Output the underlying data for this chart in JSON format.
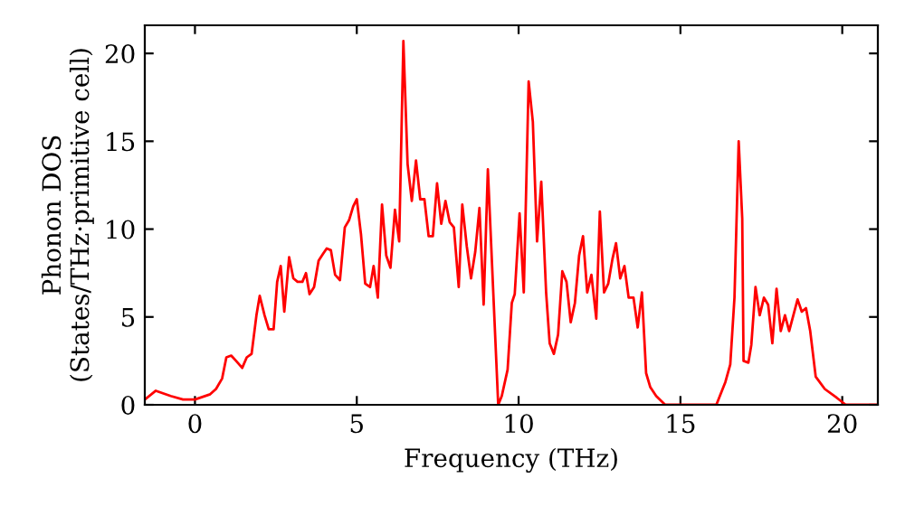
{
  "chart_data": {
    "type": "line",
    "xlabel": "Frequency (THz)",
    "ylabel": "Phonon DOS\n(States/THz·primitive cell)",
    "xlim": [
      -1.55,
      21.1
    ],
    "ylim": [
      0,
      21.6
    ],
    "xticks": [
      0,
      5,
      10,
      15,
      20
    ],
    "yticks": [
      0,
      5,
      10,
      15,
      20
    ],
    "grid": false,
    "legend": false,
    "marker": "none",
    "line_style": "solid",
    "series": [
      {
        "color": "#ff0000",
        "x": [
          -1.55,
          -1.21,
          -0.75,
          -0.37,
          0.0,
          0.47,
          0.65,
          0.84,
          0.97,
          1.12,
          1.27,
          1.46,
          1.6,
          1.75,
          1.9,
          2.0,
          2.15,
          2.28,
          2.43,
          2.54,
          2.65,
          2.76,
          2.91,
          3.04,
          3.17,
          3.32,
          3.43,
          3.54,
          3.68,
          3.82,
          3.96,
          4.07,
          4.2,
          4.33,
          4.48,
          4.63,
          4.76,
          4.89,
          5.0,
          5.13,
          5.26,
          5.41,
          5.52,
          5.65,
          5.78,
          5.91,
          6.04,
          6.18,
          6.31,
          6.44,
          6.57,
          6.7,
          6.83,
          6.96,
          7.09,
          7.22,
          7.35,
          7.48,
          7.61,
          7.74,
          7.87,
          8.0,
          8.15,
          8.26,
          8.4,
          8.53,
          8.66,
          8.79,
          8.92,
          9.05,
          9.37,
          9.48,
          9.66,
          9.79,
          9.88,
          10.03,
          10.16,
          10.31,
          10.44,
          10.57,
          10.7,
          10.85,
          10.96,
          11.09,
          11.22,
          11.35,
          11.48,
          11.61,
          11.74,
          11.87,
          11.99,
          12.12,
          12.25,
          12.4,
          12.51,
          12.64,
          12.77,
          12.9,
          13.01,
          13.14,
          13.27,
          13.4,
          13.55,
          13.68,
          13.81,
          13.94,
          14.07,
          14.25,
          14.53,
          16.11,
          16.39,
          16.54,
          16.67,
          16.8,
          16.91,
          16.95,
          17.1,
          17.19,
          17.32,
          17.45,
          17.58,
          17.71,
          17.84,
          17.97,
          18.1,
          18.23,
          18.36,
          18.49,
          18.62,
          18.75,
          18.88,
          19.01,
          19.18,
          19.46,
          19.83,
          20.11,
          21.1
        ],
        "values": [
          0.3,
          0.8,
          0.5,
          0.3,
          0.3,
          0.6,
          0.9,
          1.5,
          2.7,
          2.8,
          2.5,
          2.1,
          2.7,
          2.9,
          5.1,
          6.2,
          5.1,
          4.3,
          4.3,
          7.0,
          7.9,
          5.3,
          8.4,
          7.2,
          7.0,
          7.0,
          7.5,
          6.3,
          6.7,
          8.2,
          8.6,
          8.9,
          8.8,
          7.4,
          7.1,
          10.1,
          10.5,
          11.3,
          11.7,
          9.7,
          6.9,
          6.7,
          7.9,
          6.1,
          11.4,
          8.5,
          7.8,
          11.1,
          9.3,
          20.7,
          13.7,
          11.6,
          13.9,
          11.7,
          11.7,
          9.6,
          9.6,
          12.6,
          10.3,
          11.6,
          10.4,
          10.1,
          6.7,
          11.4,
          9.0,
          7.2,
          8.7,
          11.2,
          5.7,
          13.4,
          0.0,
          0.5,
          2.0,
          5.8,
          6.3,
          10.9,
          6.4,
          18.4,
          16.1,
          9.3,
          12.7,
          6.4,
          3.5,
          2.9,
          4.0,
          7.6,
          7.0,
          4.7,
          5.8,
          8.5,
          9.6,
          6.4,
          7.4,
          4.9,
          11.0,
          6.4,
          6.9,
          8.3,
          9.2,
          7.2,
          7.9,
          6.1,
          6.1,
          4.4,
          6.4,
          1.8,
          1.0,
          0.5,
          0.0,
          0.0,
          1.3,
          2.3,
          6.1,
          15.0,
          10.6,
          2.5,
          2.4,
          3.4,
          6.7,
          5.1,
          6.1,
          5.7,
          3.5,
          6.6,
          4.2,
          5.1,
          4.2,
          5.1,
          6.0,
          5.3,
          5.5,
          4.2,
          1.6,
          0.9,
          0.4,
          0.0,
          0.0
        ]
      }
    ]
  }
}
